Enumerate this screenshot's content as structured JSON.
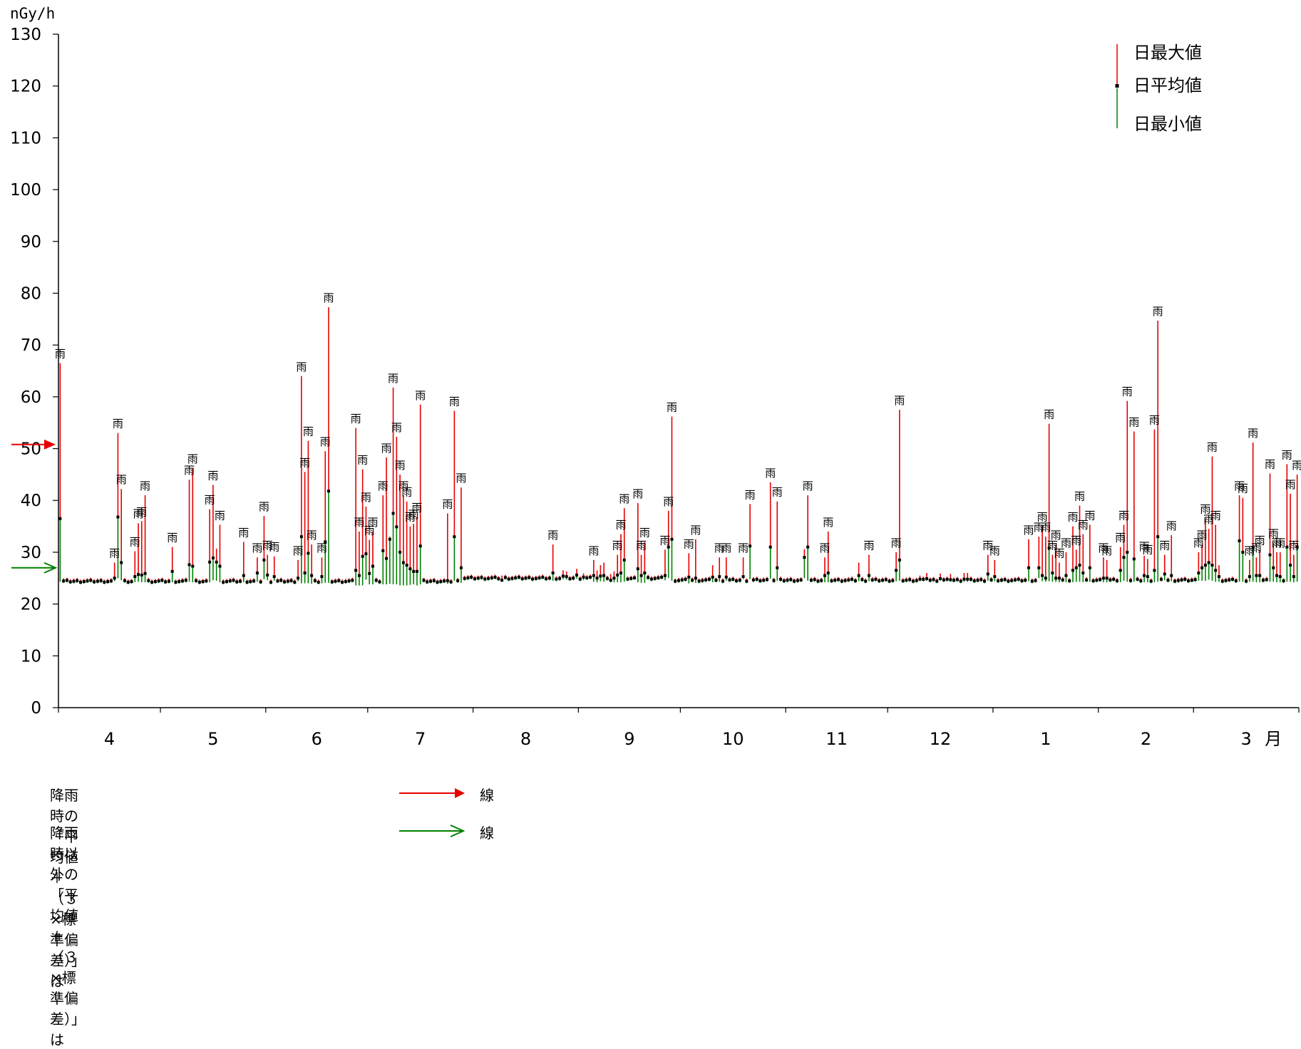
{
  "chart_data": {
    "type": "bar",
    "ylabel": "nGy/h",
    "ylim": [
      0,
      130
    ],
    "yticks": [
      0,
      10,
      20,
      30,
      40,
      50,
      60,
      70,
      80,
      90,
      100,
      110,
      120,
      130
    ],
    "month_labels": [
      "4",
      "5",
      "6",
      "7",
      "8",
      "9",
      "10",
      "11",
      "12",
      "1",
      "2",
      "3"
    ],
    "month_suffix": "月",
    "legend": {
      "max": "日最大値",
      "mean": "日平均値",
      "min": "日最小値"
    },
    "rain_label": "雨",
    "threshold_rain": 50.8,
    "threshold_dry": 27.0,
    "colors": {
      "max": "#e60000",
      "mean": "#000000",
      "min": "#008000",
      "rain_arrow": "#e60000",
      "dry_arrow": "#008000"
    },
    "days": 365,
    "baseline_mean": 24.6,
    "rain_events": [
      {
        "day": 1,
        "max": 66.5,
        "mean": 36.5,
        "min": 24.3
      },
      {
        "day": 17,
        "max": 28.0,
        "mean": 25.0,
        "min": 24.4
      },
      {
        "day": 18,
        "max": 53.0,
        "mean": 36.8,
        "min": 25.0
      },
      {
        "day": 19,
        "max": 42.2,
        "mean": 28.0,
        "min": 24.6
      },
      {
        "day": 23,
        "max": 30.2,
        "mean": 25.3,
        "min": 24.2
      },
      {
        "day": 24,
        "max": 35.6,
        "mean": 25.7,
        "min": 24.3
      },
      {
        "day": 25,
        "max": 36.0,
        "mean": 25.6,
        "min": 24.2
      },
      {
        "day": 26,
        "max": 41.0,
        "mean": 25.9,
        "min": 24.2
      },
      {
        "day": 34,
        "max": 31.0,
        "mean": 26.3,
        "min": 24.2
      },
      {
        "day": 39,
        "max": 44.0,
        "mean": 27.6,
        "min": 24.3
      },
      {
        "day": 40,
        "max": 46.2,
        "mean": 27.3,
        "min": 24.2
      },
      {
        "day": 45,
        "max": 38.3,
        "mean": 28.1,
        "min": 24.2
      },
      {
        "day": 46,
        "max": 43.0,
        "mean": 28.9,
        "min": 24.6
      },
      {
        "day": 47,
        "max": 30.7,
        "mean": 28.1,
        "min": 24.5
      },
      {
        "day": 48,
        "max": 35.3,
        "mean": 27.3,
        "min": 24.2
      },
      {
        "day": 55,
        "max": 32.0,
        "mean": 25.5,
        "min": 24.2
      },
      {
        "day": 59,
        "max": 29.0,
        "mean": 26.0,
        "min": 24.3
      },
      {
        "day": 61,
        "max": 37.0,
        "mean": 28.5,
        "min": 24.8
      },
      {
        "day": 62,
        "max": 29.5,
        "mean": 25.6,
        "min": 24.6
      },
      {
        "day": 64,
        "max": 29.2,
        "mean": 25.3,
        "min": 24.5
      },
      {
        "day": 71,
        "max": 28.5,
        "mean": 25.0,
        "min": 24.4
      },
      {
        "day": 72,
        "max": 64.0,
        "mean": 33.0,
        "min": 24.0
      },
      {
        "day": 73,
        "max": 45.5,
        "mean": 26.0,
        "min": 24.0
      },
      {
        "day": 74,
        "max": 51.5,
        "mean": 29.8,
        "min": 24.0
      },
      {
        "day": 75,
        "max": 31.5,
        "mean": 25.5,
        "min": 23.9
      },
      {
        "day": 78,
        "max": 29.0,
        "mean": 25.3,
        "min": 24.0
      },
      {
        "day": 79,
        "max": 49.5,
        "mean": 32.0,
        "min": 24.1
      },
      {
        "day": 80,
        "max": 77.3,
        "mean": 41.8,
        "min": 24.1
      },
      {
        "day": 88,
        "max": 54.0,
        "mean": 26.5,
        "min": 23.6
      },
      {
        "day": 89,
        "max": 34.0,
        "mean": 25.5,
        "min": 23.6
      },
      {
        "day": 90,
        "max": 46.0,
        "mean": 29.2,
        "min": 23.6
      },
      {
        "day": 91,
        "max": 38.8,
        "mean": 29.7,
        "min": 24.7
      },
      {
        "day": 92,
        "max": 32.4,
        "mean": 25.9,
        "min": 23.8
      },
      {
        "day": 93,
        "max": 34.0,
        "mean": 27.3,
        "min": 23.8
      },
      {
        "day": 96,
        "max": 41.0,
        "mean": 30.3,
        "min": 23.8
      },
      {
        "day": 97,
        "max": 48.3,
        "mean": 28.8,
        "min": 23.8
      },
      {
        "day": 98,
        "max": 33.0,
        "mean": 32.5,
        "min": 23.9
      },
      {
        "day": 99,
        "max": 61.8,
        "mean": 37.5,
        "min": 23.8
      },
      {
        "day": 100,
        "max": 52.3,
        "mean": 34.9,
        "min": 23.8
      },
      {
        "day": 101,
        "max": 45.0,
        "mean": 30.0,
        "min": 23.6
      },
      {
        "day": 102,
        "max": 41.0,
        "mean": 28.0,
        "min": 23.6
      },
      {
        "day": 103,
        "max": 39.8,
        "mean": 27.5,
        "min": 23.6
      },
      {
        "day": 104,
        "max": 35.0,
        "mean": 26.8,
        "min": 23.7
      },
      {
        "day": 105,
        "max": 35.5,
        "mean": 26.3,
        "min": 23.8
      },
      {
        "day": 106,
        "max": 36.8,
        "mean": 26.3,
        "min": 23.6
      },
      {
        "day": 107,
        "max": 58.5,
        "mean": 31.2,
        "min": 23.8
      },
      {
        "day": 115,
        "max": 37.5,
        "mean": 24.5,
        "min": 23.9
      },
      {
        "day": 117,
        "max": 57.3,
        "mean": 33.0,
        "min": 24.5
      },
      {
        "day": 119,
        "max": 42.5,
        "mean": 27.0,
        "min": 24.1
      },
      {
        "day": 131,
        "max": 25.5,
        "mean": 24.6,
        "min": 24.3
      },
      {
        "day": 146,
        "max": 31.5,
        "mean": 26.0,
        "min": 24.5
      },
      {
        "day": 149,
        "max": 26.5,
        "mean": 25.4,
        "min": 24.8
      },
      {
        "day": 150,
        "max": 26.3,
        "mean": 25.3,
        "min": 24.7
      },
      {
        "day": 153,
        "max": 26.8,
        "mean": 25.6,
        "min": 24.9
      },
      {
        "day": 155,
        "max": 25.9,
        "mean": 25.2,
        "min": 24.6
      },
      {
        "day": 158,
        "max": 28.5,
        "mean": 25.5,
        "min": 24.3
      },
      {
        "day": 159,
        "max": 26.5,
        "mean": 25.0,
        "min": 24.2
      },
      {
        "day": 160,
        "max": 27.5,
        "mean": 25.4,
        "min": 24.4
      },
      {
        "day": 161,
        "max": 28.0,
        "mean": 25.5,
        "min": 24.3
      },
      {
        "day": 163,
        "max": 25.8,
        "mean": 24.6,
        "min": 24.2
      },
      {
        "day": 164,
        "max": 26.3,
        "mean": 25.0,
        "min": 24.2
      },
      {
        "day": 165,
        "max": 29.5,
        "mean": 25.6,
        "min": 24.2
      },
      {
        "day": 166,
        "max": 33.5,
        "mean": 26.0,
        "min": 24.2
      },
      {
        "day": 167,
        "max": 38.5,
        "mean": 28.5,
        "min": 24.3
      },
      {
        "day": 171,
        "max": 39.5,
        "mean": 26.8,
        "min": 24.2
      },
      {
        "day": 172,
        "max": 29.5,
        "mean": 25.5,
        "min": 24.1
      },
      {
        "day": 173,
        "max": 32.0,
        "mean": 26.0,
        "min": 24.1
      },
      {
        "day": 179,
        "max": 30.5,
        "mean": 25.5,
        "min": 24.6
      },
      {
        "day": 180,
        "max": 38.0,
        "mean": 31.0,
        "min": 25.0
      },
      {
        "day": 181,
        "max": 56.2,
        "mean": 32.5,
        "min": 24.5
      },
      {
        "day": 186,
        "max": 29.8,
        "mean": 25.2,
        "min": 24.0
      },
      {
        "day": 188,
        "max": 32.5,
        "mean": 25.0,
        "min": 24.1
      },
      {
        "day": 193,
        "max": 27.5,
        "mean": 25.2,
        "min": 24.2
      },
      {
        "day": 195,
        "max": 29.0,
        "mean": 25.3,
        "min": 24.3
      },
      {
        "day": 197,
        "max": 29.0,
        "mean": 25.2,
        "min": 24.5
      },
      {
        "day": 202,
        "max": 29.0,
        "mean": 25.3,
        "min": 24.8
      },
      {
        "day": 204,
        "max": 39.3,
        "mean": 31.2,
        "min": 24.8
      },
      {
        "day": 210,
        "max": 43.5,
        "mean": 31.0,
        "min": 24.9
      },
      {
        "day": 212,
        "max": 39.8,
        "mean": 27.0,
        "min": 24.5
      },
      {
        "day": 220,
        "max": 30.6,
        "mean": 29.0,
        "min": 25.0
      },
      {
        "day": 221,
        "max": 41.0,
        "mean": 31.0,
        "min": 24.5
      },
      {
        "day": 226,
        "max": 29.0,
        "mean": 25.5,
        "min": 24.2
      },
      {
        "day": 227,
        "max": 34.0,
        "mean": 26.0,
        "min": 24.2
      },
      {
        "day": 236,
        "max": 28.0,
        "mean": 25.5,
        "min": 24.4
      },
      {
        "day": 239,
        "max": 29.5,
        "mean": 25.5,
        "min": 24.4
      },
      {
        "day": 247,
        "max": 30.0,
        "mean": 26.5,
        "min": 24.4
      },
      {
        "day": 248,
        "max": 57.5,
        "mean": 28.5,
        "min": 24.5
      },
      {
        "day": 254,
        "max": 25.5,
        "mean": 24.8,
        "min": 24.4
      },
      {
        "day": 256,
        "max": 26.0,
        "mean": 24.9,
        "min": 24.5
      },
      {
        "day": 260,
        "max": 25.9,
        "mean": 24.9,
        "min": 24.5
      },
      {
        "day": 263,
        "max": 25.8,
        "mean": 24.7,
        "min": 24.3
      },
      {
        "day": 267,
        "max": 26.0,
        "mean": 24.8,
        "min": 24.3
      },
      {
        "day": 268,
        "max": 26.0,
        "mean": 24.8,
        "min": 24.3
      },
      {
        "day": 274,
        "max": 29.5,
        "mean": 25.8,
        "min": 24.5
      },
      {
        "day": 276,
        "max": 28.5,
        "mean": 25.3,
        "min": 24.4
      },
      {
        "day": 286,
        "max": 32.5,
        "mean": 27.0,
        "min": 24.4
      },
      {
        "day": 289,
        "max": 33.0,
        "mean": 27.0,
        "min": 25.0
      },
      {
        "day": 290,
        "max": 35.0,
        "mean": 25.5,
        "min": 24.4
      },
      {
        "day": 291,
        "max": 33.0,
        "mean": 25.0,
        "min": 24.3
      },
      {
        "day": 292,
        "max": 54.8,
        "mean": 30.8,
        "min": 24.4
      },
      {
        "day": 293,
        "max": 29.5,
        "mean": 26.0,
        "min": 24.3
      },
      {
        "day": 294,
        "max": 31.5,
        "mean": 25.0,
        "min": 24.3
      },
      {
        "day": 295,
        "max": 28.0,
        "mean": 25.0,
        "min": 24.2
      },
      {
        "day": 297,
        "max": 30.0,
        "mean": 25.5,
        "min": 24.2
      },
      {
        "day": 299,
        "max": 35.0,
        "mean": 26.5,
        "min": 24.2
      },
      {
        "day": 300,
        "max": 30.5,
        "mean": 27.0,
        "min": 24.3
      },
      {
        "day": 301,
        "max": 39.0,
        "mean": 27.5,
        "min": 24.3
      },
      {
        "day": 302,
        "max": 33.5,
        "mean": 26.0,
        "min": 24.2
      },
      {
        "day": 304,
        "max": 35.3,
        "mean": 27.0,
        "min": 24.3
      },
      {
        "day": 308,
        "max": 29.0,
        "mean": 25.0,
        "min": 24.2
      },
      {
        "day": 309,
        "max": 28.5,
        "mean": 25.0,
        "min": 24.2
      },
      {
        "day": 313,
        "max": 31.0,
        "mean": 26.5,
        "min": 24.2
      },
      {
        "day": 314,
        "max": 35.3,
        "mean": 29.0,
        "min": 24.5
      },
      {
        "day": 315,
        "max": 59.2,
        "mean": 30.0,
        "min": 24.3
      },
      {
        "day": 317,
        "max": 53.3,
        "mean": 28.7,
        "min": 24.3
      },
      {
        "day": 320,
        "max": 29.3,
        "mean": 25.5,
        "min": 24.2
      },
      {
        "day": 321,
        "max": 28.7,
        "mean": 25.3,
        "min": 24.2
      },
      {
        "day": 323,
        "max": 53.7,
        "mean": 26.5,
        "min": 24.2
      },
      {
        "day": 324,
        "max": 74.7,
        "mean": 33.0,
        "min": 24.3
      },
      {
        "day": 326,
        "max": 29.5,
        "mean": 25.8,
        "min": 24.6
      },
      {
        "day": 328,
        "max": 33.3,
        "mean": 25.5,
        "min": 24.4
      },
      {
        "day": 336,
        "max": 30.0,
        "mean": 26.0,
        "min": 24.5
      },
      {
        "day": 337,
        "max": 31.5,
        "mean": 27.0,
        "min": 24.5
      },
      {
        "day": 338,
        "max": 36.5,
        "mean": 27.5,
        "min": 24.5
      },
      {
        "day": 339,
        "max": 34.5,
        "mean": 28.0,
        "min": 24.7
      },
      {
        "day": 340,
        "max": 48.5,
        "mean": 27.5,
        "min": 24.5
      },
      {
        "day": 341,
        "max": 35.3,
        "mean": 26.5,
        "min": 24.3
      },
      {
        "day": 342,
        "max": 27.5,
        "mean": 25.3,
        "min": 24.3
      },
      {
        "day": 348,
        "max": 41.0,
        "mean": 32.2,
        "min": 24.3
      },
      {
        "day": 349,
        "max": 40.5,
        "mean": 30.0,
        "min": 24.3
      },
      {
        "day": 351,
        "max": 28.5,
        "mean": 25.3,
        "min": 24.3
      },
      {
        "day": 352,
        "max": 51.2,
        "mean": 31.0,
        "min": 24.3
      },
      {
        "day": 353,
        "max": 29.0,
        "mean": 25.5,
        "min": 24.2
      },
      {
        "day": 354,
        "max": 30.5,
        "mean": 25.5,
        "min": 24.2
      },
      {
        "day": 357,
        "max": 45.2,
        "mean": 29.5,
        "min": 24.3
      },
      {
        "day": 358,
        "max": 31.8,
        "mean": 27.0,
        "min": 24.3
      },
      {
        "day": 359,
        "max": 30.0,
        "mean": 25.5,
        "min": 24.2
      },
      {
        "day": 360,
        "max": 30.0,
        "mean": 25.3,
        "min": 24.2
      },
      {
        "day": 362,
        "max": 47.0,
        "mean": 31.0,
        "min": 24.3
      },
      {
        "day": 363,
        "max": 41.3,
        "mean": 27.5,
        "min": 24.3
      },
      {
        "day": 364,
        "max": 29.5,
        "mean": 25.3,
        "min": 24.2
      },
      {
        "day": 365,
        "max": 45.0,
        "mean": 31.0,
        "min": 24.3
      }
    ]
  },
  "notes": {
    "rain_text": "降雨時の「平均値＋（３×標準偏差）」は",
    "rain_suffix": "線",
    "dry_text": "降雨時以外の「平均値＋（３×標準偏差）」は",
    "dry_suffix": "線"
  }
}
